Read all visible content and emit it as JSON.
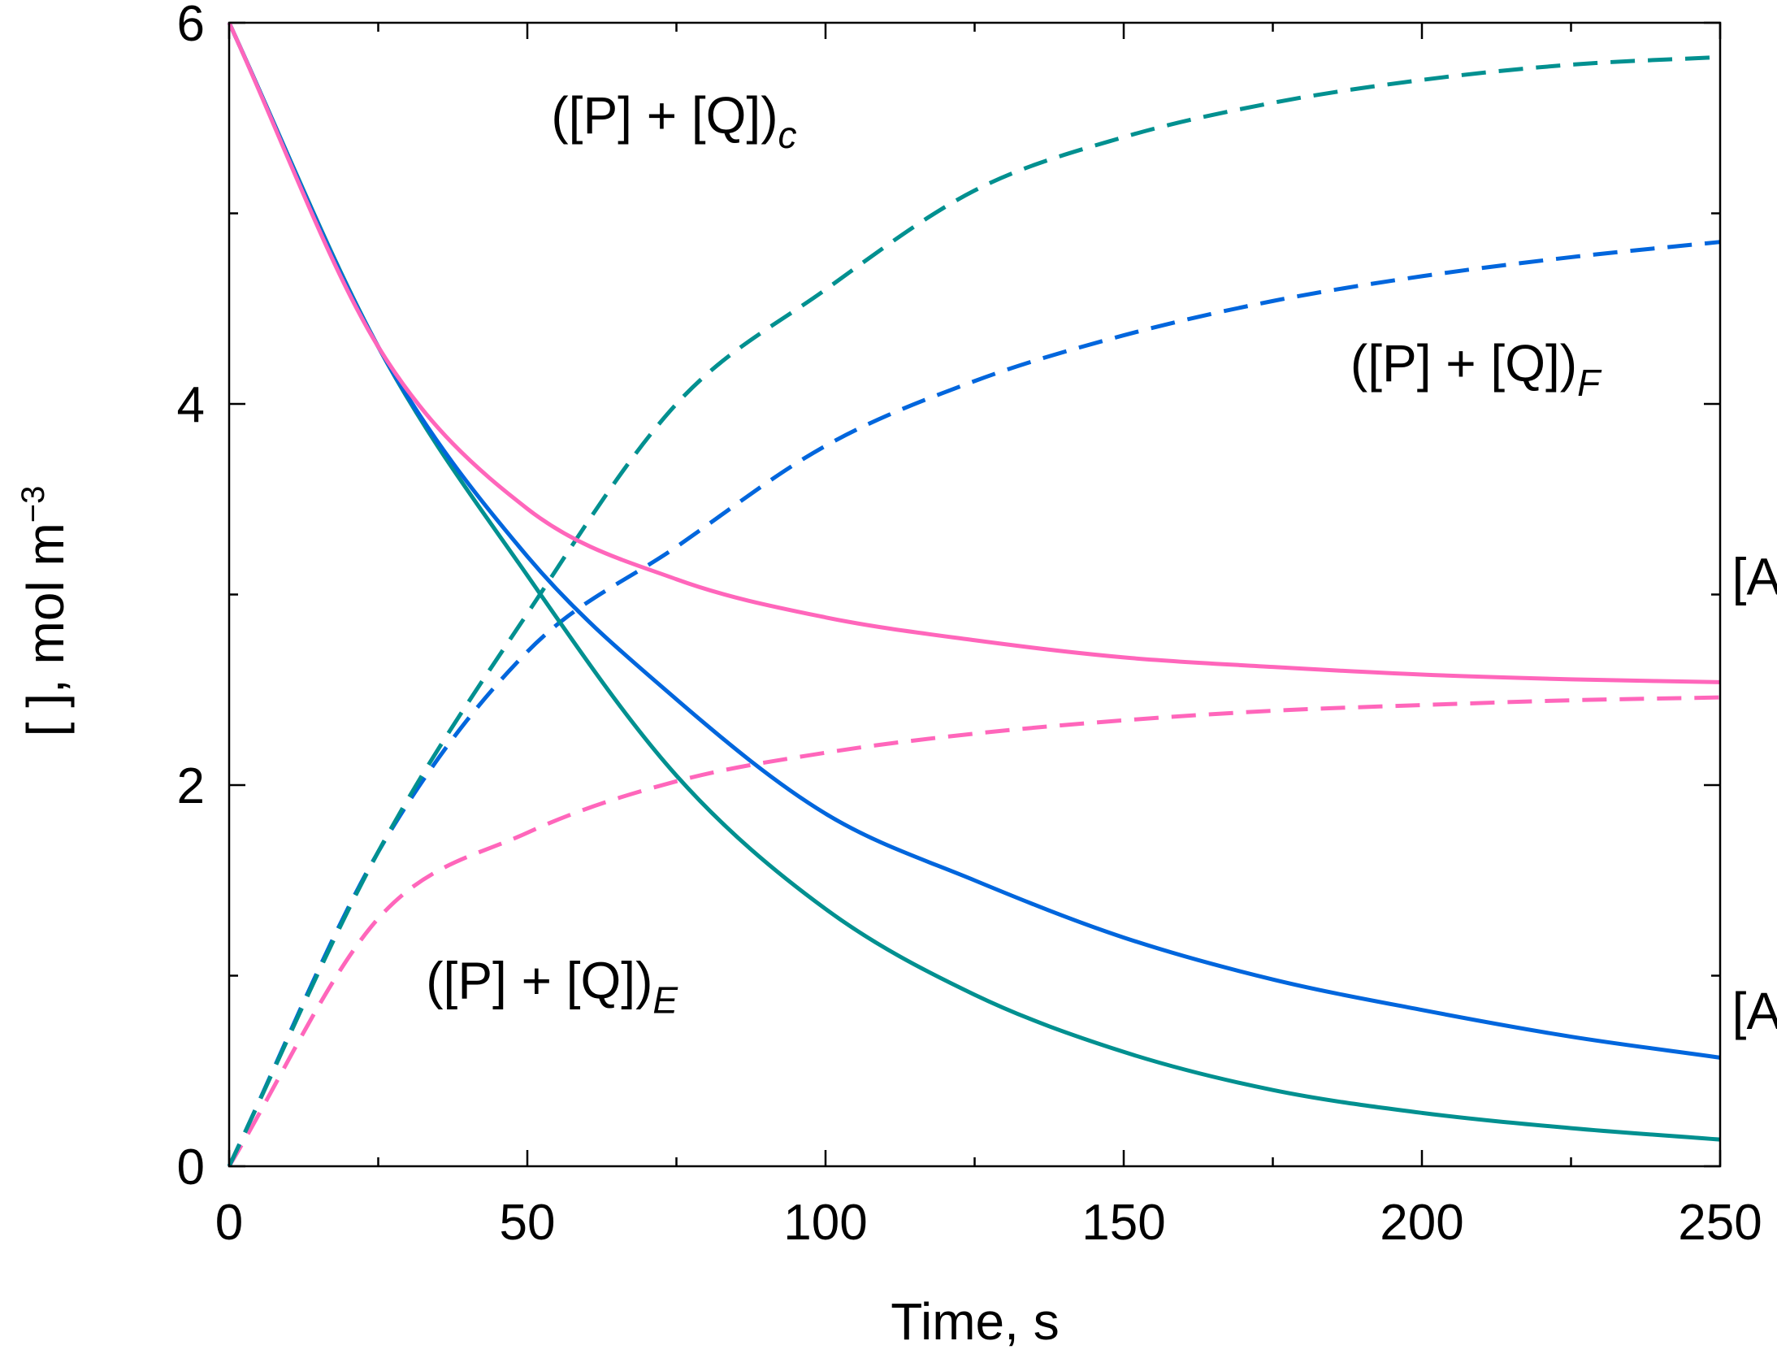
{
  "chart_data": {
    "type": "line",
    "title": "",
    "xlabel": "Time, s",
    "ylabel_main": "[  ], mol m",
    "ylabel_sup": "−3",
    "xlim": [
      0,
      250
    ],
    "ylim": [
      0,
      6
    ],
    "x_ticks": [
      "0",
      "50",
      "100",
      "150",
      "200",
      "250"
    ],
    "y_ticks": [
      "0",
      "2",
      "4",
      "6"
    ],
    "grid": false,
    "x": [
      0,
      25,
      50,
      75,
      100,
      125,
      150,
      175,
      200,
      225,
      250
    ],
    "series": [
      {
        "name": "[A]c",
        "color": "#009090",
        "style": "solid",
        "values": [
          6.0,
          4.3,
          3.1,
          2.05,
          1.35,
          0.9,
          0.6,
          0.4,
          0.28,
          0.2,
          0.14
        ],
        "label": {
          "main": "[A]",
          "sub": "c"
        }
      },
      {
        "name": "[A]F",
        "color": "#0066DD",
        "style": "solid",
        "values": [
          6.0,
          4.3,
          3.2,
          2.45,
          1.85,
          1.5,
          1.2,
          0.98,
          0.82,
          0.68,
          0.57
        ],
        "label": {
          "main": "[A]",
          "sub": "F"
        }
      },
      {
        "name": "[A]E",
        "color": "#FF66BB",
        "style": "solid",
        "values": [
          6.0,
          4.3,
          3.45,
          3.08,
          2.88,
          2.76,
          2.67,
          2.62,
          2.58,
          2.555,
          2.54
        ],
        "label": {
          "main": "[A]",
          "sub": "E"
        }
      },
      {
        "name": "([P] + [Q])c",
        "color": "#009090",
        "style": "dashed",
        "values": [
          0.0,
          1.65,
          2.9,
          4.0,
          4.6,
          5.12,
          5.4,
          5.58,
          5.7,
          5.78,
          5.82
        ],
        "label": {
          "main": "([P] + [Q])",
          "sub": "c"
        }
      },
      {
        "name": "([P] + [Q])F",
        "color": "#0066DD",
        "style": "dashed",
        "values": [
          0.0,
          1.65,
          2.7,
          3.25,
          3.78,
          4.12,
          4.36,
          4.54,
          4.67,
          4.77,
          4.85
        ],
        "label": {
          "main": "([P] + [Q])",
          "sub": "F"
        }
      },
      {
        "name": "([P] + [Q])E",
        "color": "#FF66BB",
        "style": "dashed",
        "values": [
          0.0,
          1.3,
          1.75,
          2.02,
          2.17,
          2.27,
          2.34,
          2.39,
          2.42,
          2.445,
          2.46
        ],
        "label": {
          "main": "([P] + [Q])",
          "sub": "E"
        }
      }
    ]
  }
}
